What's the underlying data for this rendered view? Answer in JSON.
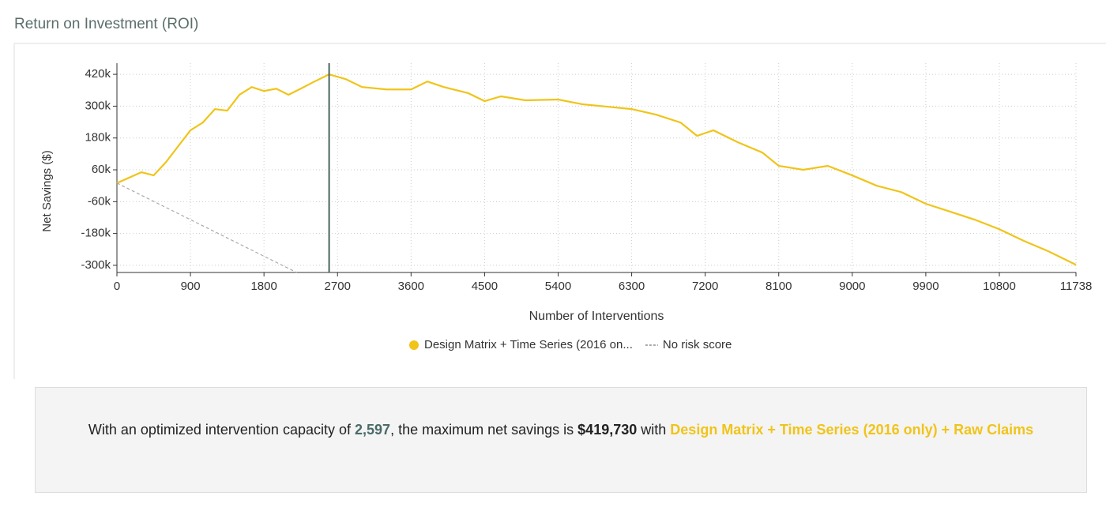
{
  "header": {
    "title": "Return on Investment (ROI)"
  },
  "chart_data": {
    "type": "line",
    "x_label": "Number of Interventions",
    "y_label": "Net Savings ($)",
    "xlim": [
      0,
      11738
    ],
    "ylim": [
      -327000,
      462000
    ],
    "xticks": [
      0,
      900,
      1800,
      2700,
      3600,
      4500,
      5400,
      6300,
      7200,
      8100,
      9000,
      9900,
      10800,
      11738
    ],
    "yticks": [
      {
        "value": -300000,
        "label": "-300k"
      },
      {
        "value": -180000,
        "label": "-180k"
      },
      {
        "value": -60000,
        "label": "-60k"
      },
      {
        "value": 60000,
        "label": "60k"
      },
      {
        "value": 180000,
        "label": "180k"
      },
      {
        "value": 300000,
        "label": "300k"
      },
      {
        "value": 420000,
        "label": "420k"
      }
    ],
    "grid": true,
    "series": [
      {
        "name": "Design Matrix + Time Series (2016 on...",
        "color": "#f0c419",
        "dashed": false,
        "x": [
          0,
          300,
          450,
          600,
          750,
          900,
          1050,
          1200,
          1350,
          1500,
          1650,
          1800,
          1950,
          2100,
          2250,
          2400,
          2597,
          2800,
          3000,
          3300,
          3600,
          3800,
          4000,
          4300,
          4500,
          4700,
          5000,
          5400,
          5700,
          6000,
          6300,
          6600,
          6900,
          7100,
          7300,
          7600,
          7900,
          8100,
          8400,
          8700,
          9000,
          9300,
          9600,
          9900,
          10200,
          10500,
          10800,
          11100,
          11400,
          11738
        ],
        "values": [
          10000,
          51000,
          39000,
          89000,
          149000,
          209000,
          238000,
          289000,
          283000,
          343000,
          372000,
          357000,
          366000,
          343000,
          366000,
          390000,
          419730,
          402000,
          372000,
          363000,
          363000,
          393000,
          372000,
          349000,
          319000,
          337000,
          322000,
          325000,
          307000,
          298000,
          289000,
          268000,
          238000,
          188000,
          209000,
          164000,
          125000,
          75000,
          60000,
          75000,
          39000,
          0,
          -24000,
          -68000,
          -98000,
          -128000,
          -164000,
          -208000,
          -247000,
          -298000
        ]
      },
      {
        "name": "No risk score",
        "color": "#aaaaaa",
        "dashed": true,
        "x": [
          0,
          2200
        ],
        "values": [
          10000,
          -327000
        ]
      }
    ]
  },
  "summary": {
    "intro": "With an optimized intervention capacity of",
    "capacity": {
      "value": 2597,
      "label": "2,597"
    },
    "middle": ", the maximum net savings is",
    "savings": {
      "value": 419730,
      "label": "$419,730"
    },
    "joiner": "with",
    "model": "Design Matrix + Time Series (2016 only) + Raw Claims"
  }
}
